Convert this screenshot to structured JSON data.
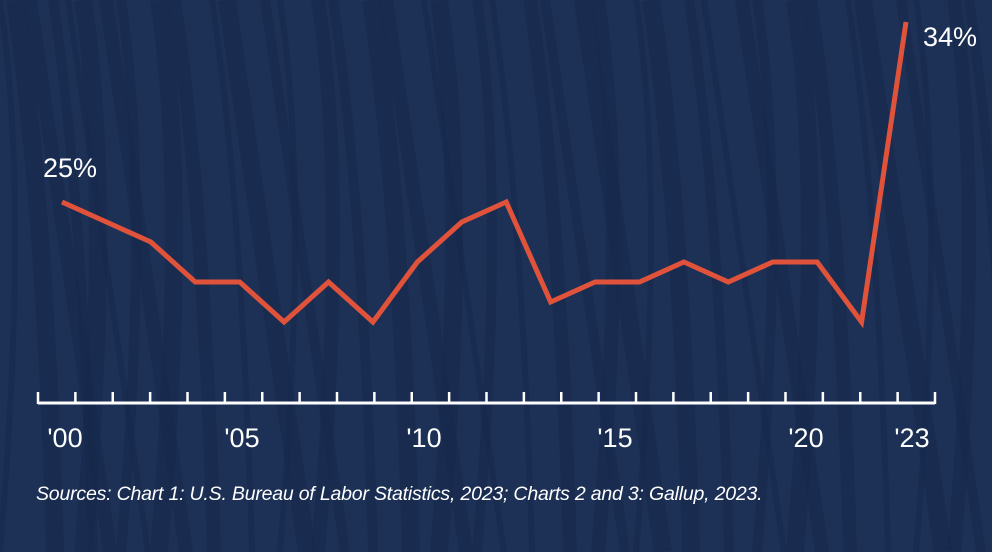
{
  "chart_data": {
    "type": "line",
    "values": [
      25,
      24,
      23,
      21,
      21,
      19,
      21,
      19,
      22,
      24,
      25,
      20,
      21,
      21,
      22,
      21,
      22,
      22,
      19,
      34
    ],
    "data_labels": [
      {
        "index": 0,
        "text": "25%"
      },
      {
        "index": 19,
        "text": "34%"
      }
    ],
    "x_tick_labels": [
      "'00",
      "'05",
      "'10",
      "'15",
      "'20",
      "'23"
    ],
    "ylim": [
      15,
      35
    ],
    "grid": false,
    "line_color": "#e0533a",
    "axis_color": "#ffffff",
    "background_color": "#1d3156"
  },
  "source": "Sources: Chart 1: U.S. Bureau of Labor Statistics, 2023; Charts 2 and 3: Gallup, 2023."
}
